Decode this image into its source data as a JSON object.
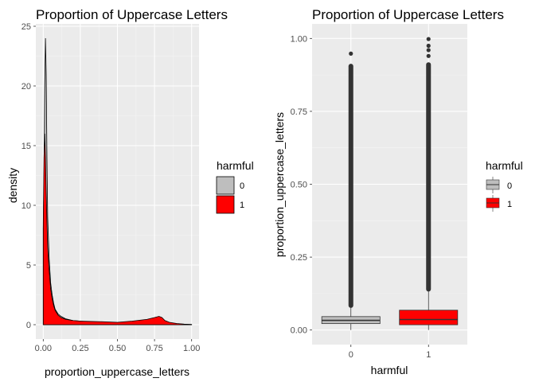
{
  "chart_data": [
    {
      "type": "area",
      "title": "Proportion of Uppercase Letters",
      "xlabel": "proportion_uppercase_letters",
      "ylabel": "density",
      "xlim": [
        -0.05,
        1.05
      ],
      "ylim": [
        -1.2,
        25.2
      ],
      "xticks": [
        0,
        0.25,
        0.5,
        0.75,
        1
      ],
      "xtick_labels": [
        "0.00",
        "0.25",
        "0.50",
        "0.75",
        "1.00"
      ],
      "yticks": [
        0,
        5,
        10,
        15,
        20,
        25
      ],
      "ytick_labels": [
        "0",
        "5",
        "10",
        "15",
        "20",
        "25"
      ],
      "grid": true,
      "legend": {
        "title": "harmful",
        "position": "right",
        "entries": [
          "0",
          "1"
        ]
      },
      "colors": {
        "0": "#bebebe",
        "1": "#ff0000",
        "panel": "#ebebeb",
        "grid": "#ffffff",
        "outline": "#000000"
      },
      "series": [
        {
          "name": "0",
          "x": [
            0,
            0.005,
            0.01,
            0.015,
            0.02,
            0.025,
            0.03,
            0.04,
            0.05,
            0.06,
            0.07,
            0.08,
            0.1,
            0.12,
            0.15,
            0.2,
            0.25,
            0.3,
            0.4,
            0.5,
            0.6,
            0.7,
            0.75,
            0.78,
            0.8,
            0.82,
            0.85,
            0.9,
            0.95,
            1.0
          ],
          "y": [
            8,
            12,
            20,
            24,
            21,
            14,
            9,
            5.5,
            3.5,
            2.5,
            1.8,
            1.3,
            0.9,
            0.7,
            0.5,
            0.35,
            0.3,
            0.25,
            0.2,
            0.15,
            0.12,
            0.15,
            0.2,
            0.25,
            0.22,
            0.15,
            0.1,
            0.06,
            0.04,
            0.02
          ]
        },
        {
          "name": "1",
          "x": [
            0,
            0.005,
            0.01,
            0.015,
            0.02,
            0.025,
            0.03,
            0.04,
            0.05,
            0.06,
            0.07,
            0.08,
            0.1,
            0.12,
            0.15,
            0.2,
            0.25,
            0.3,
            0.4,
            0.5,
            0.6,
            0.7,
            0.75,
            0.78,
            0.8,
            0.82,
            0.85,
            0.9,
            0.95,
            1.0
          ],
          "y": [
            8.5,
            14,
            16,
            14,
            11,
            8.5,
            6.5,
            4.5,
            3,
            2.2,
            1.6,
            1.2,
            0.8,
            0.6,
            0.45,
            0.35,
            0.3,
            0.28,
            0.25,
            0.2,
            0.3,
            0.45,
            0.6,
            0.7,
            0.6,
            0.35,
            0.2,
            0.1,
            0.05,
            0.02
          ]
        }
      ]
    },
    {
      "type": "box",
      "title": "Proportion of Uppercase Letters",
      "xlabel": "harmful",
      "ylabel": "proportion_uppercase_letters",
      "categories": [
        "0",
        "1"
      ],
      "ylim": [
        -0.05,
        1.05
      ],
      "yticks": [
        0,
        0.25,
        0.5,
        0.75,
        1
      ],
      "ytick_labels": [
        "0.00",
        "0.25",
        "0.50",
        "0.75",
        "1.00"
      ],
      "grid": true,
      "legend": {
        "title": "harmful",
        "position": "right",
        "entries": [
          "0",
          "1"
        ]
      },
      "colors": {
        "0": "#bebebe",
        "1": "#ff0000",
        "outlier": "#333333"
      },
      "boxes": [
        {
          "name": "0",
          "q1": 0.022,
          "median": 0.033,
          "q3": 0.046,
          "whisker_low": 0.0,
          "whisker_high": 0.084,
          "outlier_range": [
            0.084,
            0.905
          ],
          "outliers": [
            0.948
          ]
        },
        {
          "name": "1",
          "q1": 0.018,
          "median": 0.036,
          "q3": 0.068,
          "whisker_low": 0.0,
          "whisker_high": 0.14,
          "outlier_range": [
            0.14,
            0.91
          ],
          "outliers": [
            0.94,
            0.96,
            0.975,
            0.998
          ]
        }
      ]
    }
  ]
}
